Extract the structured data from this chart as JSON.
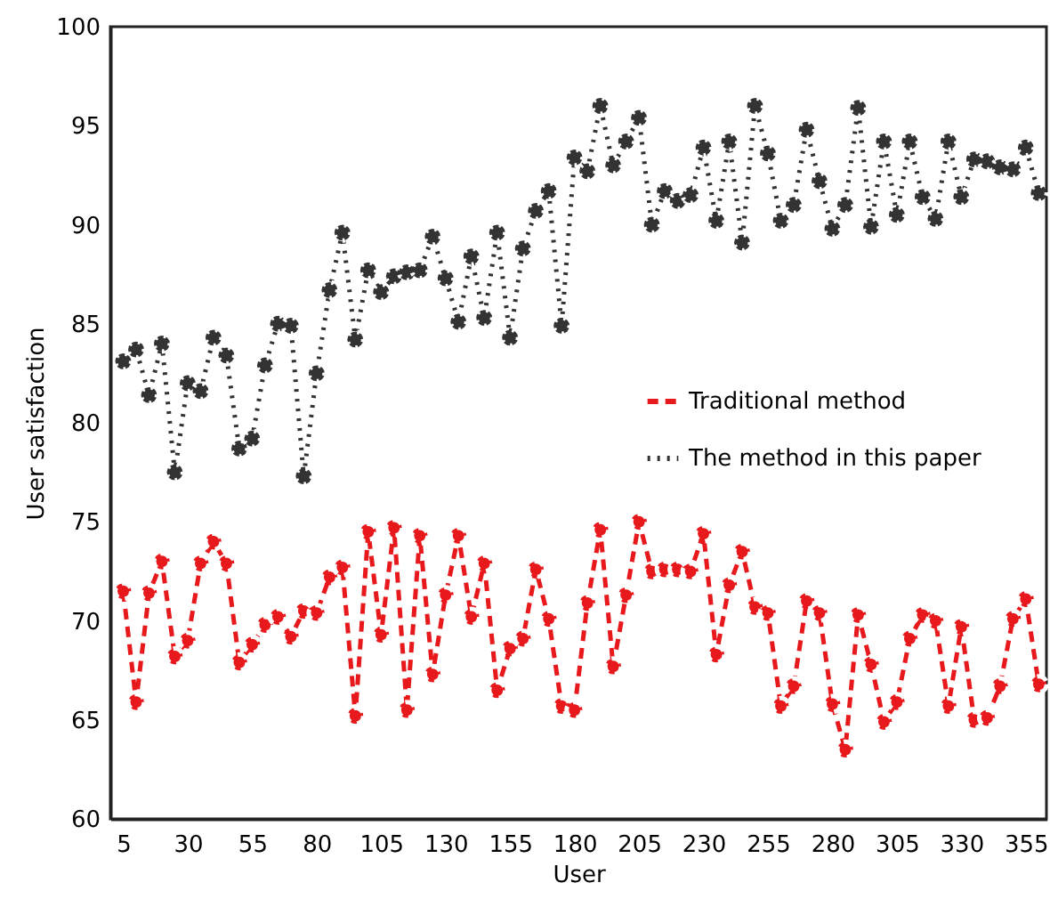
{
  "chart_data": {
    "type": "line",
    "xlabel": "User",
    "ylabel": "User satisfaction",
    "x": [
      5,
      10,
      15,
      20,
      25,
      30,
      35,
      40,
      45,
      50,
      55,
      60,
      65,
      70,
      75,
      80,
      85,
      90,
      95,
      100,
      105,
      110,
      115,
      120,
      125,
      130,
      135,
      140,
      145,
      150,
      155,
      160,
      165,
      170,
      175,
      180,
      185,
      190,
      195,
      200,
      205,
      210,
      215,
      220,
      225,
      230,
      235,
      240,
      245,
      250,
      255,
      260,
      265,
      270,
      275,
      280,
      285,
      290,
      295,
      300,
      305,
      310,
      315,
      320,
      325,
      330,
      335,
      340,
      345,
      350,
      355,
      360
    ],
    "series": [
      {
        "name": "Traditional method",
        "color": "#e8191c",
        "line_style": "dashed",
        "values": [
          71.5,
          65.9,
          71.4,
          73.0,
          68.2,
          69.0,
          72.9,
          74.0,
          72.9,
          67.9,
          68.8,
          69.8,
          70.2,
          69.2,
          70.5,
          70.4,
          72.2,
          72.7,
          65.2,
          74.5,
          69.3,
          74.7,
          65.5,
          74.3,
          67.3,
          71.3,
          74.3,
          70.2,
          72.9,
          66.5,
          68.6,
          69.1,
          72.6,
          70.1,
          65.7,
          65.5,
          70.9,
          74.6,
          67.7,
          71.3,
          75.0,
          72.5,
          72.6,
          72.6,
          72.5,
          74.4,
          68.3,
          71.8,
          73.5,
          70.7,
          70.4,
          65.7,
          66.7,
          71.0,
          70.4,
          65.8,
          63.5,
          70.3,
          67.8,
          64.9,
          65.9,
          69.1,
          70.3,
          70.0,
          65.7,
          69.7,
          65.0,
          65.1,
          66.7,
          70.1,
          71.1,
          66.8
        ]
      },
      {
        "name": "The method in this paper",
        "color": "#333333",
        "line_style": "dotted",
        "values": [
          83.1,
          83.7,
          81.4,
          84.0,
          77.5,
          82.0,
          81.6,
          84.3,
          83.4,
          78.7,
          79.2,
          82.9,
          85.0,
          84.9,
          77.3,
          82.5,
          86.7,
          89.6,
          84.2,
          87.7,
          86.6,
          87.4,
          87.6,
          87.7,
          89.4,
          87.3,
          85.1,
          88.4,
          85.3,
          89.6,
          84.3,
          88.8,
          90.7,
          91.7,
          84.9,
          93.4,
          92.7,
          96.0,
          93.0,
          94.2,
          95.4,
          90.0,
          91.7,
          91.2,
          91.5,
          93.9,
          90.2,
          94.2,
          89.1,
          96.0,
          93.6,
          90.2,
          91.0,
          94.8,
          92.2,
          89.8,
          91.0,
          95.9,
          89.9,
          94.2,
          90.5,
          94.2,
          91.4,
          90.3,
          94.2,
          91.4,
          93.3,
          93.2,
          92.9,
          92.8,
          93.9,
          91.6
        ]
      }
    ],
    "xlim": [
      0,
      363
    ],
    "xticks": [
      5,
      30,
      55,
      80,
      105,
      130,
      155,
      180,
      205,
      230,
      255,
      280,
      305,
      330,
      355
    ],
    "ylim": [
      60,
      100
    ],
    "yticks": [
      60,
      65,
      70,
      75,
      80,
      85,
      90,
      95,
      100
    ],
    "grid": false,
    "legend": "right",
    "marker": "circle"
  }
}
